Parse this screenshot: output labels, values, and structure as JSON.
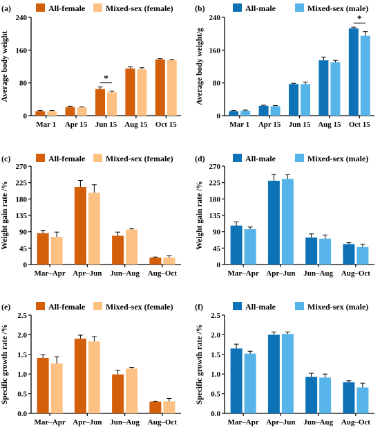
{
  "colors": {
    "dark_orange": "#d35f0b",
    "light_orange": "#fdc283",
    "dark_blue": "#0d73b6",
    "light_blue": "#56b4e9",
    "axis": "#000000"
  },
  "chart_data": [
    {
      "panel": "(a)",
      "type": "bar",
      "ylabel": "Average body weight",
      "categories": [
        "Mar 1",
        "Apr 15",
        "Jun 15",
        "Aug 15",
        "Oct 15"
      ],
      "ylim": [
        0,
        240
      ],
      "yticks": [
        "0",
        "80",
        "160",
        "240"
      ],
      "series": [
        {
          "name": "All-female",
          "color": "dark_orange",
          "values": [
            11,
            21,
            65,
            115,
            137
          ],
          "errors": [
            1.5,
            2,
            5,
            4,
            2
          ]
        },
        {
          "name": "Mixed-sex (female)",
          "color": "light_orange",
          "values": [
            11,
            20,
            57,
            113,
            135
          ],
          "errors": [
            1.5,
            1.5,
            3,
            4,
            2
          ]
        }
      ],
      "significance": [
        {
          "category_index": 2,
          "label": "*"
        }
      ]
    },
    {
      "panel": "(b)",
      "type": "bar",
      "ylabel": "Average body weight/g",
      "categories": [
        "Mar 1",
        "Apr 15",
        "Jun 15",
        "Aug 15",
        "Oct 15"
      ],
      "ylim": [
        0,
        240
      ],
      "yticks": [
        "0",
        "80",
        "160",
        "240"
      ],
      "series": [
        {
          "name": "All-male",
          "color": "dark_blue",
          "values": [
            11,
            24,
            77,
            135,
            213
          ],
          "errors": [
            1.5,
            1.5,
            2,
            8,
            3
          ]
        },
        {
          "name": "Mixed-sex (male)",
          "color": "light_blue",
          "values": [
            12,
            23,
            77,
            130,
            195
          ],
          "errors": [
            1.5,
            1.5,
            5,
            5,
            10
          ]
        }
      ],
      "significance": [
        {
          "category_index": 4,
          "label": "*"
        }
      ]
    },
    {
      "panel": "(c)",
      "type": "bar",
      "ylabel": "Weight gain rate /%",
      "categories": [
        "Mar–Apr",
        "Apr–Jun",
        "Jun–Aug",
        "Aug–Oct"
      ],
      "ylim": [
        0,
        270
      ],
      "yticks": [
        "0",
        "45",
        "90",
        "135",
        "180",
        "225",
        "270"
      ],
      "series": [
        {
          "name": "All-female",
          "color": "dark_orange",
          "values": [
            86,
            213,
            79,
            19
          ],
          "errors": [
            8,
            18,
            10,
            1.5
          ]
        },
        {
          "name": "Mixed-sex (female)",
          "color": "light_orange",
          "values": [
            76,
            197,
            96,
            19
          ],
          "errors": [
            13,
            22,
            3,
            5
          ]
        }
      ],
      "significance": []
    },
    {
      "panel": "(d)",
      "type": "bar",
      "ylabel": "Weight gain rate /%",
      "categories": [
        "Mar–Apr",
        "Apr–Jun",
        "Jun–Aug",
        "Aug–Oct"
      ],
      "ylim": [
        0,
        270
      ],
      "yticks": [
        "0",
        "45",
        "90",
        "135",
        "180",
        "225",
        "270"
      ],
      "series": [
        {
          "name": "All-male",
          "color": "dark_blue",
          "values": [
            107,
            230,
            74,
            56
          ],
          "errors": [
            10,
            18,
            10,
            4
          ]
        },
        {
          "name": "Mixed-sex (male)",
          "color": "light_blue",
          "values": [
            97,
            235,
            71,
            48
          ],
          "errors": [
            6,
            12,
            10,
            8
          ]
        }
      ],
      "significance": []
    },
    {
      "panel": "(e)",
      "type": "bar",
      "ylabel": "Specific growth rate /%",
      "categories": [
        "Mar–Apr",
        "Apr–Jun",
        "Jun–Aug",
        "Aug–Oct"
      ],
      "ylim": [
        0,
        2.5
      ],
      "yticks": [
        "0.0",
        "0.5",
        "1.0",
        "1.5",
        "2.0",
        "2.5"
      ],
      "series": [
        {
          "name": "All-female",
          "color": "dark_orange",
          "values": [
            1.41,
            1.9,
            0.99,
            0.3
          ],
          "errors": [
            0.08,
            0.09,
            0.11,
            0.01
          ]
        },
        {
          "name": "Mixed-sex (female)",
          "color": "light_orange",
          "values": [
            1.27,
            1.83,
            1.14,
            0.31
          ],
          "errors": [
            0.17,
            0.12,
            0.03,
            0.07
          ]
        }
      ],
      "significance": []
    },
    {
      "panel": "(f)",
      "type": "bar",
      "ylabel": "Specific growth rate /%",
      "categories": [
        "Mar–Apr",
        "Apr–Jun",
        "Jun–Aug",
        "Aug–Oct"
      ],
      "ylim": [
        0,
        2.5
      ],
      "yticks": [
        "0.0",
        "0.5",
        "1.0",
        "1.5",
        "2.0",
        "2.5"
      ],
      "series": [
        {
          "name": "All-male",
          "color": "dark_blue",
          "values": [
            1.65,
            2.0,
            0.93,
            0.79
          ],
          "errors": [
            0.11,
            0.07,
            0.09,
            0.04
          ]
        },
        {
          "name": "Mixed-sex (male)",
          "color": "light_blue",
          "values": [
            1.52,
            2.02,
            0.91,
            0.66
          ],
          "errors": [
            0.06,
            0.05,
            0.09,
            0.11
          ]
        }
      ],
      "significance": []
    }
  ]
}
